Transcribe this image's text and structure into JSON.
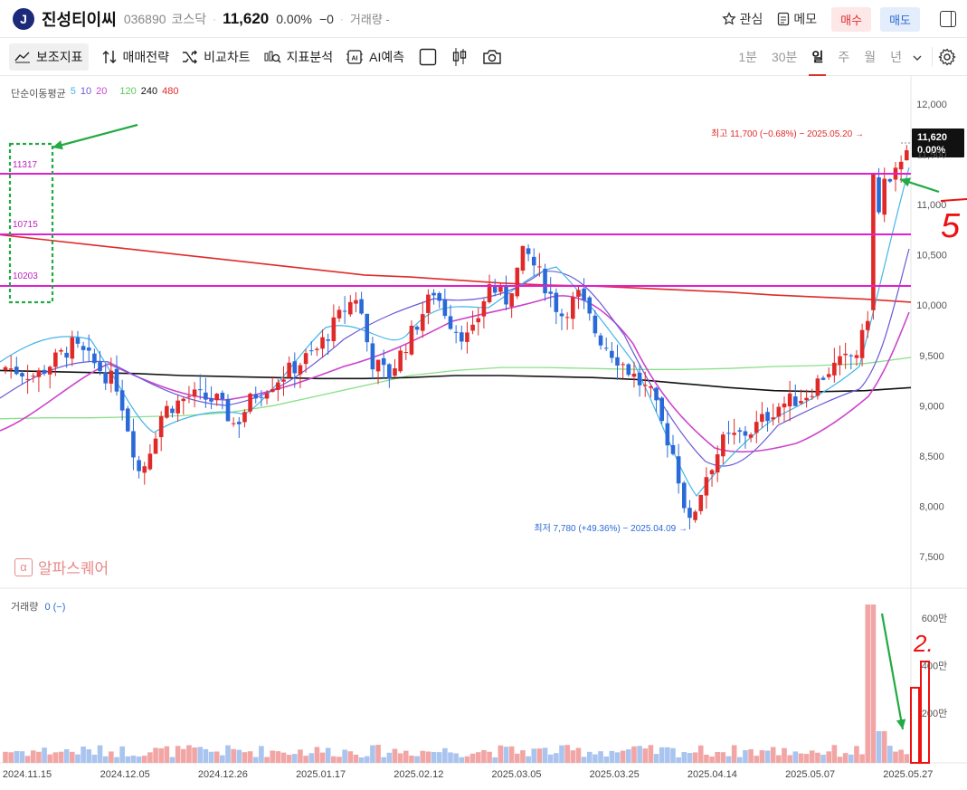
{
  "header": {
    "logo_letter": "J",
    "stock_name": "진성티이씨",
    "stock_code": "036890",
    "market": "코스닥",
    "price": "11,620",
    "change_pct": "0.00%",
    "change_sign": "−",
    "change_value": "0",
    "volume_label": "거래량 -",
    "watch_label": "관심",
    "memo_label": "메모",
    "buy_label": "매수",
    "sell_label": "매도"
  },
  "toolbar": {
    "indicators": "보조지표",
    "trading_strategy": "매매전략",
    "compare_chart": "비교차트",
    "indicator_analysis": "지표분석",
    "ai_predict": "AI예측",
    "timeframes": [
      "1분",
      "30분",
      "일",
      "주",
      "월",
      "년"
    ],
    "active_timeframe": "일"
  },
  "legend": {
    "title": "단순이동평균",
    "periods": [
      {
        "label": "5",
        "color": "#45b4e8"
      },
      {
        "label": "10",
        "color": "#6a5ad8"
      },
      {
        "label": "20",
        "color": "#cc44cc"
      },
      {
        "label": "120",
        "color": "#6fd86f"
      },
      {
        "label": "240",
        "color": "#111111"
      },
      {
        "label": "480",
        "color": "#e02a2a"
      }
    ]
  },
  "volume_legend": {
    "label": "거래량",
    "value": "0 (−)"
  },
  "watermark": "알파스퀘어",
  "annotations": {
    "high": "최고 11,700 (−0.68%) − 2025.05.20 →",
    "low": "최저 7,780 (+49.36%) − 2025.04.09 →",
    "levels": [
      "11317",
      "10715",
      "10203"
    ],
    "price_tag": "11,620",
    "price_tag_pct": "0.00%",
    "handwritten_5": "5",
    "handwritten_2": "2."
  },
  "chart_data": {
    "type": "candlestick",
    "price_axis": [
      "12,000",
      "11,500",
      "11,000",
      "10,500",
      "10,000",
      "9,500",
      "9,000",
      "8,500",
      "8,000",
      "7,500"
    ],
    "volume_axis": [
      "600만",
      "400만",
      "200만"
    ],
    "date_axis": [
      "2024.11.15",
      "2024.12.05",
      "2024.12.26",
      "2025.01.17",
      "2025.02.12",
      "2025.03.05",
      "2025.03.25",
      "2025.04.14",
      "2025.05.07",
      "2025.05.27"
    ],
    "ylim": [
      7500,
      12000
    ],
    "horizontal_levels": [
      11317,
      10715,
      10203
    ],
    "series": [
      {
        "name": "SMA 240",
        "values": [
          9350,
          9340,
          9330,
          9320,
          9300,
          9290,
          9280,
          9270,
          9270,
          9280,
          9300,
          9300,
          9290,
          9280,
          9260,
          9220,
          9180,
          9150,
          9140,
          9150,
          9180
        ]
      },
      {
        "name": "SMA 480",
        "values": [
          10700,
          10650,
          10600,
          10550,
          10500,
          10450,
          10400,
          10350,
          10300,
          10280,
          10250,
          10220,
          10200,
          10190,
          10170,
          10150,
          10130,
          10100,
          10080,
          10060,
          10030
        ]
      },
      {
        "name": "SMA 120",
        "values": [
          8870,
          8880,
          8880,
          8890,
          8900,
          8930,
          9000,
          9100,
          9200,
          9300,
          9350,
          9380,
          9380,
          9370,
          9360,
          9360,
          9370,
          9390,
          9400,
          9420,
          9480
        ]
      }
    ]
  }
}
